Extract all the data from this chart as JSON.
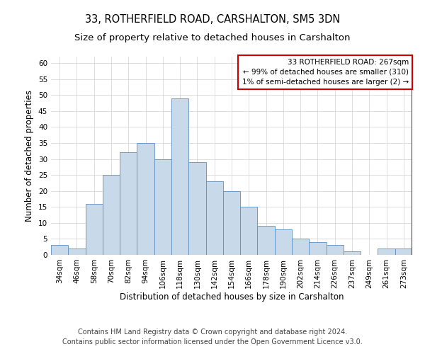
{
  "title": "33, ROTHERFIELD ROAD, CARSHALTON, SM5 3DN",
  "subtitle": "Size of property relative to detached houses in Carshalton",
  "xlabel": "Distribution of detached houses by size in Carshalton",
  "ylabel": "Number of detached properties",
  "categories": [
    "34sqm",
    "46sqm",
    "58sqm",
    "70sqm",
    "82sqm",
    "94sqm",
    "106sqm",
    "118sqm",
    "130sqm",
    "142sqm",
    "154sqm",
    "166sqm",
    "178sqm",
    "190sqm",
    "202sqm",
    "214sqm",
    "226sqm",
    "237sqm",
    "249sqm",
    "261sqm",
    "273sqm"
  ],
  "values": [
    3,
    2,
    16,
    25,
    32,
    35,
    30,
    49,
    29,
    23,
    20,
    15,
    9,
    8,
    5,
    4,
    3,
    1,
    0,
    2,
    2
  ],
  "bar_color": "#c8d9ea",
  "bar_edge_color": "#5b8fc4",
  "ylim": [
    0,
    62
  ],
  "yticks": [
    0,
    5,
    10,
    15,
    20,
    25,
    30,
    35,
    40,
    45,
    50,
    55,
    60
  ],
  "vline_color": "#cc0000",
  "annotation_box_text": "33 ROTHERFIELD ROAD: 267sqm\n← 99% of detached houses are smaller (310)\n1% of semi-detached houses are larger (2) →",
  "annotation_box_color": "#cc0000",
  "footnote1": "Contains HM Land Registry data © Crown copyright and database right 2024.",
  "footnote2": "Contains public sector information licensed under the Open Government Licence v3.0.",
  "grid_color": "#d0d0d0",
  "background_color": "#ffffff",
  "title_fontsize": 10.5,
  "subtitle_fontsize": 9.5,
  "axis_label_fontsize": 8.5,
  "ylabel_fontsize": 8.5,
  "tick_fontsize": 7.5,
  "annotation_fontsize": 7.5,
  "footnote_fontsize": 7.0
}
